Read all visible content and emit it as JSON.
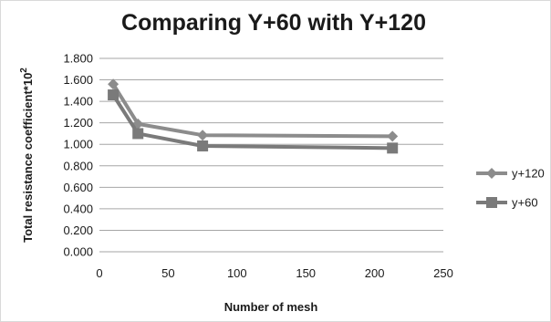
{
  "chart_data": {
    "type": "line",
    "title": "Comparing Y+60 with Y+120",
    "xlabel": "Number of mesh",
    "ylabel": "Total resistance coefficient*10",
    "ylabel_exponent": "2",
    "xlim": [
      0,
      250
    ],
    "ylim": [
      0,
      1.8
    ],
    "xticks": [
      0,
      50,
      100,
      150,
      200,
      250
    ],
    "yticks": [
      0,
      0.2,
      0.4,
      0.6,
      0.8,
      1.0,
      1.2,
      1.4,
      1.6,
      1.8
    ],
    "ytick_labels": [
      "0.000",
      "0.200",
      "0.400",
      "0.600",
      "0.800",
      "1.000",
      "1.200",
      "1.400",
      "1.600",
      "1.800"
    ],
    "grid": "horizontal",
    "legend": "right",
    "series": [
      {
        "name": "y+120",
        "marker": "diamond",
        "color": "#8c8c8c",
        "x": [
          10,
          28,
          75,
          213
        ],
        "y": [
          1.56,
          1.19,
          1.085,
          1.075
        ]
      },
      {
        "name": "y+60",
        "marker": "square",
        "color": "#7a7a7a",
        "x": [
          10,
          28,
          75,
          213
        ],
        "y": [
          1.46,
          1.1,
          0.985,
          0.965
        ]
      }
    ]
  }
}
